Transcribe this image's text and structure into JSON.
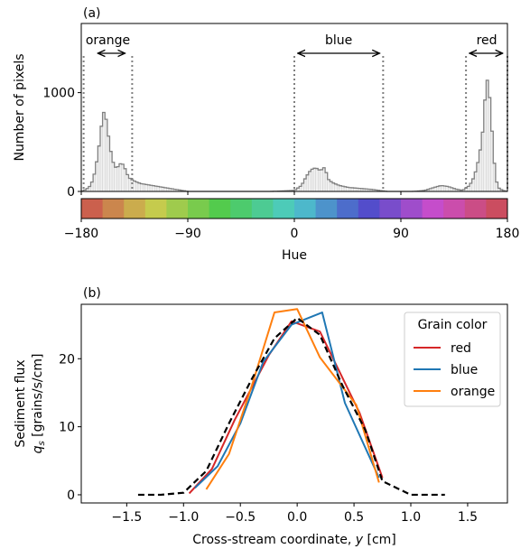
{
  "chart_data": [
    {
      "panel_label": "(a)",
      "type": "histogram",
      "xlabel": "Hue",
      "ylabel": "Number of pixels",
      "xlim": [
        -180,
        180
      ],
      "ylim": [
        0,
        1700
      ],
      "xticks": [
        -180,
        -90,
        0,
        90,
        180
      ],
      "xtick_labels": [
        "−180",
        "−90",
        "0",
        "90",
        "180"
      ],
      "yticks": [
        0,
        1000
      ],
      "ytick_labels": [
        "0",
        "1000"
      ],
      "bin_width": 2,
      "colorbar_segments": 20,
      "histogram_anchors": [
        [
          -180,
          0
        ],
        [
          -176,
          20
        ],
        [
          -172,
          60
        ],
        [
          -170,
          130
        ],
        [
          -168,
          220
        ],
        [
          -166,
          380
        ],
        [
          -164,
          540
        ],
        [
          -162,
          780
        ],
        [
          -160,
          820
        ],
        [
          -158,
          640
        ],
        [
          -156,
          480
        ],
        [
          -154,
          330
        ],
        [
          -152,
          260
        ],
        [
          -150,
          230
        ],
        [
          -148,
          270
        ],
        [
          -146,
          290
        ],
        [
          -144,
          260
        ],
        [
          -142,
          200
        ],
        [
          -140,
          140
        ],
        [
          -136,
          110
        ],
        [
          -130,
          80
        ],
        [
          -120,
          60
        ],
        [
          -110,
          40
        ],
        [
          -100,
          20
        ],
        [
          -92,
          5
        ],
        [
          -90,
          0
        ],
        [
          -20,
          0
        ],
        [
          -10,
          5
        ],
        [
          0,
          10
        ],
        [
          6,
          60
        ],
        [
          10,
          150
        ],
        [
          14,
          220
        ],
        [
          18,
          240
        ],
        [
          22,
          210
        ],
        [
          26,
          250
        ],
        [
          28,
          130
        ],
        [
          32,
          90
        ],
        [
          38,
          60
        ],
        [
          46,
          40
        ],
        [
          56,
          30
        ],
        [
          66,
          20
        ],
        [
          72,
          10
        ],
        [
          78,
          0
        ],
        [
          100,
          0
        ],
        [
          106,
          5
        ],
        [
          110,
          10
        ],
        [
          118,
          40
        ],
        [
          124,
          60
        ],
        [
          130,
          50
        ],
        [
          136,
          25
        ],
        [
          142,
          10
        ],
        [
          148,
          60
        ],
        [
          152,
          150
        ],
        [
          156,
          340
        ],
        [
          158,
          500
        ],
        [
          160,
          700
        ],
        [
          162,
          1150
        ],
        [
          164,
          1100
        ],
        [
          166,
          800
        ],
        [
          168,
          420
        ],
        [
          170,
          150
        ],
        [
          172,
          40
        ],
        [
          176,
          10
        ],
        [
          180,
          0
        ]
      ],
      "annotations": [
        {
          "text": "orange",
          "span": [
            -178,
            -137
          ],
          "arrow": [
            -166,
            -143
          ]
        },
        {
          "text": "blue",
          "span": [
            0,
            75
          ],
          "arrow": [
            3,
            72
          ]
        },
        {
          "text": "red",
          "span": [
            145,
            180
          ],
          "arrow": [
            148,
            176
          ]
        }
      ]
    },
    {
      "panel_label": "(b)",
      "type": "line",
      "xlabel_prefix": "Cross-stream coordinate, ",
      "xlabel_var": "y",
      "xlabel_suffix": " [cm]",
      "ylabel_line1": "Sediment flux",
      "ylabel_var": "q",
      "ylabel_sub": "s",
      "ylabel_units": " [grains/s/cm]",
      "xlim": [
        -1.9,
        1.85
      ],
      "ylim": [
        -1.2,
        28
      ],
      "xticks": [
        -1.5,
        -1.0,
        -0.5,
        0.0,
        0.5,
        1.0,
        1.5
      ],
      "xtick_labels": [
        "−1.5",
        "−1.0",
        "−0.5",
        "0.0",
        "0.5",
        "1.0",
        "1.5"
      ],
      "yticks": [
        0,
        10,
        20
      ],
      "ytick_labels": [
        "0",
        "10",
        "20"
      ],
      "legend_title": "Grain color",
      "legend_position": "upper right",
      "series": [
        {
          "name": "red",
          "color": "#d62728",
          "x": [
            -0.95,
            -0.75,
            -0.55,
            -0.25,
            -0.05,
            0.2,
            0.55,
            0.75
          ],
          "y": [
            0.2,
            3.8,
            11.0,
            20.5,
            25.5,
            24.0,
            12.0,
            2.5
          ]
        },
        {
          "name": "blue",
          "color": "#1f77b4",
          "x": [
            -0.9,
            -0.7,
            -0.5,
            -0.3,
            -0.05,
            0.22,
            0.42,
            0.72
          ],
          "y": [
            1.0,
            4.2,
            10.5,
            19.5,
            25.0,
            26.8,
            13.5,
            2.5
          ]
        },
        {
          "name": "orange",
          "color": "#ff7f0e",
          "x": [
            -0.8,
            -0.6,
            -0.4,
            -0.2,
            0.0,
            0.2,
            0.52,
            0.72
          ],
          "y": [
            0.8,
            6.0,
            16.0,
            26.8,
            27.3,
            20.2,
            13.2,
            1.8
          ]
        },
        {
          "name": "",
          "color": "#000000",
          "dashed": true,
          "x": [
            -1.4,
            -1.2,
            -1.0,
            -0.8,
            -0.6,
            -0.4,
            -0.2,
            0.0,
            0.2,
            0.4,
            0.6,
            0.75,
            1.0,
            1.2,
            1.3
          ],
          "y": [
            0.0,
            0.0,
            0.3,
            3.5,
            10.5,
            17.0,
            23.0,
            26.0,
            23.5,
            16.0,
            9.5,
            2.0,
            0.0,
            0.0,
            0.0
          ]
        }
      ]
    }
  ]
}
